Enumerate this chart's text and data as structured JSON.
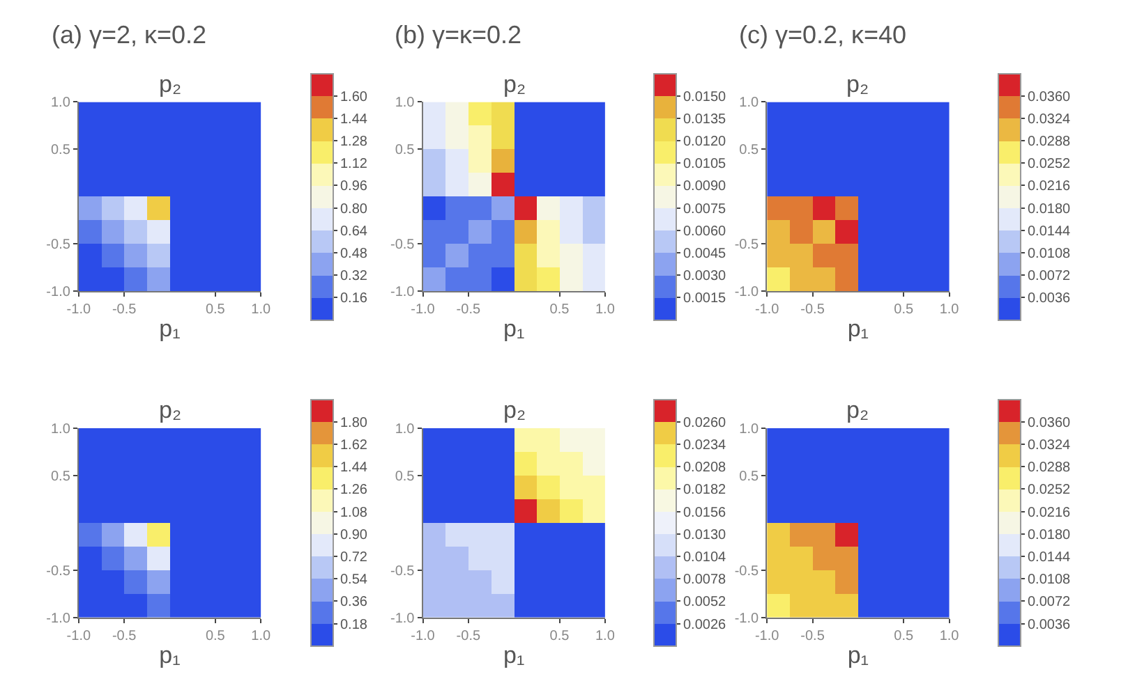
{
  "chart_data": [
    {
      "type": "heatmap",
      "title": "(a) γ=2, κ=0.2",
      "xlabel": "p₁",
      "ylabel": "p₂",
      "x": [
        -0.875,
        -0.625,
        -0.375,
        -0.125,
        0.125,
        0.375,
        0.625,
        0.875
      ],
      "y": [
        0.875,
        0.625,
        0.375,
        0.125,
        -0.125,
        -0.375,
        -0.625,
        -0.875
      ],
      "xlim": [
        -1,
        1
      ],
      "ylim": [
        -1,
        1
      ],
      "xticks": [
        {
          "value": -1,
          "label": "-1.0"
        },
        {
          "value": -0.5,
          "label": "-0.5"
        },
        {
          "value": 0.5,
          "label": "0.5"
        },
        {
          "value": 1,
          "label": "1.0"
        }
      ],
      "yticks": [
        {
          "value": -1,
          "label": "-1.0"
        },
        {
          "value": -0.5,
          "label": "-0.5"
        },
        {
          "value": 0.5,
          "label": "0.5"
        },
        {
          "value": 1,
          "label": "1.0"
        }
      ],
      "clim": [
        0,
        1.76
      ],
      "cticks": [
        {
          "value": 0.16,
          "label": "0.16"
        },
        {
          "value": 0.32,
          "label": "0.32"
        },
        {
          "value": 0.48,
          "label": "0.48"
        },
        {
          "value": 0.64,
          "label": "0.64"
        },
        {
          "value": 0.8,
          "label": "0.80"
        },
        {
          "value": 0.96,
          "label": "0.96"
        },
        {
          "value": 1.12,
          "label": "1.12"
        },
        {
          "value": 1.28,
          "label": "1.28"
        },
        {
          "value": 1.44,
          "label": "1.44"
        },
        {
          "value": 1.6,
          "label": "1.60"
        }
      ],
      "colors": [
        "#2b4ce8",
        "#5676ea",
        "#8ca3f0",
        "#b8c8f5",
        "#e3e9fa",
        "#f6f6e4",
        "#fcf8b8",
        "#f9ee6a",
        "#f0cc45",
        "#e07a34",
        "#d8232a"
      ],
      "cells": [
        [
          0.08,
          0.08,
          0.08,
          0.08,
          0.08,
          0.08,
          0.08,
          0.08
        ],
        [
          0.08,
          0.08,
          0.08,
          0.08,
          0.08,
          0.08,
          0.08,
          0.08
        ],
        [
          0.08,
          0.08,
          0.08,
          0.08,
          0.08,
          0.08,
          0.08,
          0.08
        ],
        [
          0.08,
          0.08,
          0.08,
          0.08,
          0.08,
          0.08,
          0.08,
          0.08
        ],
        [
          0.4,
          0.56,
          0.72,
          1.36,
          0.08,
          0.08,
          0.08,
          0.08
        ],
        [
          0.24,
          0.4,
          0.56,
          0.72,
          0.08,
          0.08,
          0.08,
          0.08
        ],
        [
          0.08,
          0.24,
          0.4,
          0.56,
          0.08,
          0.08,
          0.08,
          0.08
        ],
        [
          0.08,
          0.08,
          0.24,
          0.4,
          0.08,
          0.08,
          0.08,
          0.08
        ]
      ]
    },
    {
      "type": "heatmap",
      "title": "(b) γ=κ=0.2",
      "xlabel": "p₁",
      "ylabel": "p₂",
      "x": [
        -0.875,
        -0.625,
        -0.375,
        -0.125,
        0.125,
        0.375,
        0.625,
        0.875
      ],
      "y": [
        0.875,
        0.625,
        0.375,
        0.125,
        -0.125,
        -0.375,
        -0.625,
        -0.875
      ],
      "xlim": [
        -1,
        1
      ],
      "ylim": [
        -1,
        1
      ],
      "xticks": [
        {
          "value": -1,
          "label": "-1.0"
        },
        {
          "value": -0.5,
          "label": "-0.5"
        },
        {
          "value": 0.5,
          "label": "0.5"
        },
        {
          "value": 1,
          "label": "1.0"
        }
      ],
      "yticks": [
        {
          "value": -1,
          "label": "-1.0"
        },
        {
          "value": -0.5,
          "label": "-0.5"
        },
        {
          "value": 0.5,
          "label": "0.5"
        },
        {
          "value": 1,
          "label": "1.0"
        }
      ],
      "clim": [
        0,
        0.0165
      ],
      "cticks": [
        {
          "value": 0.0015,
          "label": "0.0015"
        },
        {
          "value": 0.003,
          "label": "0.0030"
        },
        {
          "value": 0.0045,
          "label": "0.0045"
        },
        {
          "value": 0.006,
          "label": "0.0060"
        },
        {
          "value": 0.0075,
          "label": "0.0075"
        },
        {
          "value": 0.009,
          "label": "0.0090"
        },
        {
          "value": 0.0105,
          "label": "0.0105"
        },
        {
          "value": 0.012,
          "label": "0.0120"
        },
        {
          "value": 0.0135,
          "label": "0.0135"
        },
        {
          "value": 0.015,
          "label": "0.0150"
        }
      ],
      "colors": [
        "#2b4ce8",
        "#5676ea",
        "#8ca3f0",
        "#b8c8f5",
        "#e3e9fa",
        "#f6f6e4",
        "#fcf8b8",
        "#f9ee6a",
        "#f0dc50",
        "#e8b23c",
        "#d8232a"
      ],
      "cells": [
        [
          0.00675,
          0.00825,
          0.01125,
          0.01275,
          0.00075,
          0.00075,
          0.00075,
          0.00075
        ],
        [
          0.00675,
          0.00825,
          0.00975,
          0.01275,
          0.00075,
          0.00075,
          0.00075,
          0.00075
        ],
        [
          0.00525,
          0.00675,
          0.00975,
          0.01425,
          0.00075,
          0.00075,
          0.00075,
          0.00075
        ],
        [
          0.00525,
          0.00675,
          0.00825,
          0.01575,
          0.00075,
          0.00075,
          0.00075,
          0.00075
        ],
        [
          0.00075,
          0.00225,
          0.00225,
          0.00375,
          0.01575,
          0.00825,
          0.00675,
          0.00525
        ],
        [
          0.00225,
          0.00225,
          0.00375,
          0.00225,
          0.01425,
          0.00975,
          0.00675,
          0.00525
        ],
        [
          0.00225,
          0.00375,
          0.00225,
          0.00225,
          0.01275,
          0.00975,
          0.00825,
          0.00675
        ],
        [
          0.00375,
          0.00225,
          0.00225,
          0.00075,
          0.01275,
          0.01125,
          0.00825,
          0.00675
        ]
      ]
    },
    {
      "type": "heatmap",
      "title": "(c) γ=0.2, κ=40",
      "xlabel": "p₁",
      "ylabel": "p₂",
      "x": [
        -0.875,
        -0.625,
        -0.375,
        -0.125,
        0.125,
        0.375,
        0.625,
        0.875
      ],
      "y": [
        0.875,
        0.625,
        0.375,
        0.125,
        -0.125,
        -0.375,
        -0.625,
        -0.875
      ],
      "xlim": [
        -1,
        1
      ],
      "ylim": [
        -1,
        1
      ],
      "xticks": [
        {
          "value": -1,
          "label": "-1.0"
        },
        {
          "value": -0.5,
          "label": "-0.5"
        },
        {
          "value": 0.5,
          "label": "0.5"
        },
        {
          "value": 1,
          "label": "1.0"
        }
      ],
      "yticks": [
        {
          "value": -1,
          "label": "-1.0"
        },
        {
          "value": -0.5,
          "label": "-0.5"
        },
        {
          "value": 0.5,
          "label": "0.5"
        },
        {
          "value": 1,
          "label": "1.0"
        }
      ],
      "clim": [
        0,
        0.0396
      ],
      "cticks": [
        {
          "value": 0.0036,
          "label": "0.0036"
        },
        {
          "value": 0.0072,
          "label": "0.0072"
        },
        {
          "value": 0.0108,
          "label": "0.0108"
        },
        {
          "value": 0.0144,
          "label": "0.0144"
        },
        {
          "value": 0.018,
          "label": "0.0180"
        },
        {
          "value": 0.0216,
          "label": "0.0216"
        },
        {
          "value": 0.0252,
          "label": "0.0252"
        },
        {
          "value": 0.0288,
          "label": "0.0288"
        },
        {
          "value": 0.0324,
          "label": "0.0324"
        },
        {
          "value": 0.036,
          "label": "0.0360"
        }
      ],
      "colors": [
        "#2b4ce8",
        "#5676ea",
        "#8ca3f0",
        "#b8c8f5",
        "#e3e9fa",
        "#f6f6e4",
        "#fcf8b8",
        "#f9ee6a",
        "#ebb842",
        "#e07a34",
        "#d8232a"
      ],
      "cells": [
        [
          0.0018,
          0.0018,
          0.0018,
          0.0018,
          0.0018,
          0.0018,
          0.0018,
          0.0018
        ],
        [
          0.0018,
          0.0018,
          0.0018,
          0.0018,
          0.0018,
          0.0018,
          0.0018,
          0.0018
        ],
        [
          0.0018,
          0.0018,
          0.0018,
          0.0018,
          0.0018,
          0.0018,
          0.0018,
          0.0018
        ],
        [
          0.0018,
          0.0018,
          0.0018,
          0.0018,
          0.0018,
          0.0018,
          0.0018,
          0.0018
        ],
        [
          0.0342,
          0.0342,
          0.0378,
          0.0342,
          0.0018,
          0.0018,
          0.0018,
          0.0018
        ],
        [
          0.0306,
          0.0342,
          0.0306,
          0.0378,
          0.0018,
          0.0018,
          0.0018,
          0.0018
        ],
        [
          0.0306,
          0.0306,
          0.0342,
          0.0342,
          0.0018,
          0.0018,
          0.0018,
          0.0018
        ],
        [
          0.027,
          0.0306,
          0.0306,
          0.0342,
          0.0018,
          0.0018,
          0.0018,
          0.0018
        ]
      ]
    },
    {
      "type": "heatmap",
      "xlabel": "p₁",
      "ylabel": "p₂",
      "x": [
        -0.875,
        -0.625,
        -0.375,
        -0.125,
        0.125,
        0.375,
        0.625,
        0.875
      ],
      "y": [
        0.875,
        0.625,
        0.375,
        0.125,
        -0.125,
        -0.375,
        -0.625,
        -0.875
      ],
      "xlim": [
        -1,
        1
      ],
      "ylim": [
        -1,
        1
      ],
      "xticks": [
        {
          "value": -1,
          "label": "-1.0"
        },
        {
          "value": -0.5,
          "label": "-0.5"
        },
        {
          "value": 0.5,
          "label": "0.5"
        },
        {
          "value": 1,
          "label": "1.0"
        }
      ],
      "yticks": [
        {
          "value": -1,
          "label": "-1.0"
        },
        {
          "value": -0.5,
          "label": "-0.5"
        },
        {
          "value": 0.5,
          "label": "0.5"
        },
        {
          "value": 1,
          "label": "1.0"
        }
      ],
      "clim": [
        0,
        1.98
      ],
      "cticks": [
        {
          "value": 0.18,
          "label": "0.18"
        },
        {
          "value": 0.36,
          "label": "0.36"
        },
        {
          "value": 0.54,
          "label": "0.54"
        },
        {
          "value": 0.72,
          "label": "0.72"
        },
        {
          "value": 0.9,
          "label": "0.90"
        },
        {
          "value": 1.08,
          "label": "1.08"
        },
        {
          "value": 1.26,
          "label": "1.26"
        },
        {
          "value": 1.44,
          "label": "1.44"
        },
        {
          "value": 1.62,
          "label": "1.62"
        },
        {
          "value": 1.8,
          "label": "1.80"
        }
      ],
      "colors": [
        "#2b4ce8",
        "#5676ea",
        "#8ca3f0",
        "#b8c8f5",
        "#e3e9fa",
        "#f6f6e4",
        "#fcf8b8",
        "#f9ee6a",
        "#f0cc45",
        "#e4953a",
        "#d8232a"
      ],
      "cells": [
        [
          0.09,
          0.09,
          0.09,
          0.09,
          0.09,
          0.09,
          0.09,
          0.09
        ],
        [
          0.09,
          0.09,
          0.09,
          0.09,
          0.09,
          0.09,
          0.09,
          0.09
        ],
        [
          0.09,
          0.09,
          0.09,
          0.09,
          0.09,
          0.09,
          0.09,
          0.09
        ],
        [
          0.09,
          0.09,
          0.09,
          0.09,
          0.09,
          0.09,
          0.09,
          0.09
        ],
        [
          0.27,
          0.45,
          0.81,
          1.35,
          0.09,
          0.09,
          0.09,
          0.09
        ],
        [
          0.09,
          0.27,
          0.45,
          0.81,
          0.09,
          0.09,
          0.09,
          0.09
        ],
        [
          0.09,
          0.09,
          0.27,
          0.45,
          0.09,
          0.09,
          0.09,
          0.09
        ],
        [
          0.09,
          0.09,
          0.09,
          0.27,
          0.09,
          0.09,
          0.09,
          0.09
        ]
      ]
    },
    {
      "type": "heatmap",
      "xlabel": "p₁",
      "ylabel": "p₂",
      "x": [
        -0.875,
        -0.625,
        -0.375,
        -0.125,
        0.125,
        0.375,
        0.625,
        0.875
      ],
      "y": [
        0.875,
        0.625,
        0.375,
        0.125,
        -0.125,
        -0.375,
        -0.625,
        -0.875
      ],
      "xlim": [
        -1,
        1
      ],
      "ylim": [
        -1,
        1
      ],
      "xticks": [
        {
          "value": -1,
          "label": "-1.0"
        },
        {
          "value": -0.5,
          "label": "-0.5"
        },
        {
          "value": 0.5,
          "label": "0.5"
        },
        {
          "value": 1,
          "label": "1.0"
        }
      ],
      "yticks": [
        {
          "value": -1,
          "label": "-1.0"
        },
        {
          "value": -0.5,
          "label": "-0.5"
        },
        {
          "value": 0.5,
          "label": "0.5"
        },
        {
          "value": 1,
          "label": "1.0"
        }
      ],
      "clim": [
        0,
        0.0286
      ],
      "cticks": [
        {
          "value": 0.0026,
          "label": "0.0026"
        },
        {
          "value": 0.0052,
          "label": "0.0052"
        },
        {
          "value": 0.0078,
          "label": "0.0078"
        },
        {
          "value": 0.0104,
          "label": "0.0104"
        },
        {
          "value": 0.013,
          "label": "0.0130"
        },
        {
          "value": 0.0156,
          "label": "0.0156"
        },
        {
          "value": 0.0182,
          "label": "0.0182"
        },
        {
          "value": 0.0208,
          "label": "0.0208"
        },
        {
          "value": 0.0234,
          "label": "0.0234"
        },
        {
          "value": 0.026,
          "label": "0.0260"
        }
      ],
      "colors": [
        "#2b4ce8",
        "#5676ea",
        "#8ca3f0",
        "#b0bff4",
        "#d6dff9",
        "#eef1fa",
        "#f8f8e2",
        "#fcf8a8",
        "#f9ee6a",
        "#f0cc45",
        "#d8232a"
      ],
      "cells": [
        [
          0.0013,
          0.0013,
          0.0013,
          0.0013,
          0.0195,
          0.0195,
          0.0169,
          0.0169
        ],
        [
          0.0013,
          0.0013,
          0.0013,
          0.0013,
          0.0221,
          0.0195,
          0.0195,
          0.0169
        ],
        [
          0.0013,
          0.0013,
          0.0013,
          0.0013,
          0.0247,
          0.0221,
          0.0195,
          0.0195
        ],
        [
          0.0013,
          0.0013,
          0.0013,
          0.0013,
          0.0273,
          0.0247,
          0.0221,
          0.0195
        ],
        [
          0.0091,
          0.0117,
          0.0117,
          0.0117,
          0.0013,
          0.0013,
          0.0013,
          0.0013
        ],
        [
          0.0091,
          0.0091,
          0.0117,
          0.0117,
          0.0013,
          0.0013,
          0.0013,
          0.0013
        ],
        [
          0.0091,
          0.0091,
          0.0091,
          0.0117,
          0.0013,
          0.0013,
          0.0013,
          0.0013
        ],
        [
          0.0091,
          0.0091,
          0.0091,
          0.0091,
          0.0013,
          0.0013,
          0.0013,
          0.0013
        ]
      ]
    },
    {
      "type": "heatmap",
      "xlabel": "p₁",
      "ylabel": "p₂",
      "x": [
        -0.875,
        -0.625,
        -0.375,
        -0.125,
        0.125,
        0.375,
        0.625,
        0.875
      ],
      "y": [
        0.875,
        0.625,
        0.375,
        0.125,
        -0.125,
        -0.375,
        -0.625,
        -0.875
      ],
      "xlim": [
        -1,
        1
      ],
      "ylim": [
        -1,
        1
      ],
      "xticks": [
        {
          "value": -1,
          "label": "-1.0"
        },
        {
          "value": -0.5,
          "label": "-0.5"
        },
        {
          "value": 0.5,
          "label": "0.5"
        },
        {
          "value": 1,
          "label": "1.0"
        }
      ],
      "yticks": [
        {
          "value": -1,
          "label": "-1.0"
        },
        {
          "value": -0.5,
          "label": "-0.5"
        },
        {
          "value": 0.5,
          "label": "0.5"
        },
        {
          "value": 1,
          "label": "1.0"
        }
      ],
      "clim": [
        0,
        0.0396
      ],
      "cticks": [
        {
          "value": 0.0036,
          "label": "0.0036"
        },
        {
          "value": 0.0072,
          "label": "0.0072"
        },
        {
          "value": 0.0108,
          "label": "0.0108"
        },
        {
          "value": 0.0144,
          "label": "0.0144"
        },
        {
          "value": 0.018,
          "label": "0.0180"
        },
        {
          "value": 0.0216,
          "label": "0.0216"
        },
        {
          "value": 0.0252,
          "label": "0.0252"
        },
        {
          "value": 0.0288,
          "label": "0.0288"
        },
        {
          "value": 0.0324,
          "label": "0.0324"
        },
        {
          "value": 0.036,
          "label": "0.0360"
        }
      ],
      "colors": [
        "#2b4ce8",
        "#5676ea",
        "#8ca3f0",
        "#b8c8f5",
        "#e3e9fa",
        "#f6f6e4",
        "#fcf8b8",
        "#f9ee6a",
        "#f0cc45",
        "#e4953a",
        "#d8232a"
      ],
      "cells": [
        [
          0.0018,
          0.0018,
          0.0018,
          0.0018,
          0.0018,
          0.0018,
          0.0018,
          0.0018
        ],
        [
          0.0018,
          0.0018,
          0.0018,
          0.0018,
          0.0018,
          0.0018,
          0.0018,
          0.0018
        ],
        [
          0.0018,
          0.0018,
          0.0018,
          0.0018,
          0.0018,
          0.0018,
          0.0018,
          0.0018
        ],
        [
          0.0018,
          0.0018,
          0.0018,
          0.0018,
          0.0018,
          0.0018,
          0.0018,
          0.0018
        ],
        [
          0.0306,
          0.0342,
          0.0342,
          0.0378,
          0.0018,
          0.0018,
          0.0018,
          0.0018
        ],
        [
          0.0306,
          0.0306,
          0.0342,
          0.0342,
          0.0018,
          0.0018,
          0.0018,
          0.0018
        ],
        [
          0.0306,
          0.0306,
          0.0306,
          0.0342,
          0.0018,
          0.0018,
          0.0018,
          0.0018
        ],
        [
          0.027,
          0.0306,
          0.0306,
          0.0306,
          0.0018,
          0.0018,
          0.0018,
          0.0018
        ]
      ]
    }
  ]
}
